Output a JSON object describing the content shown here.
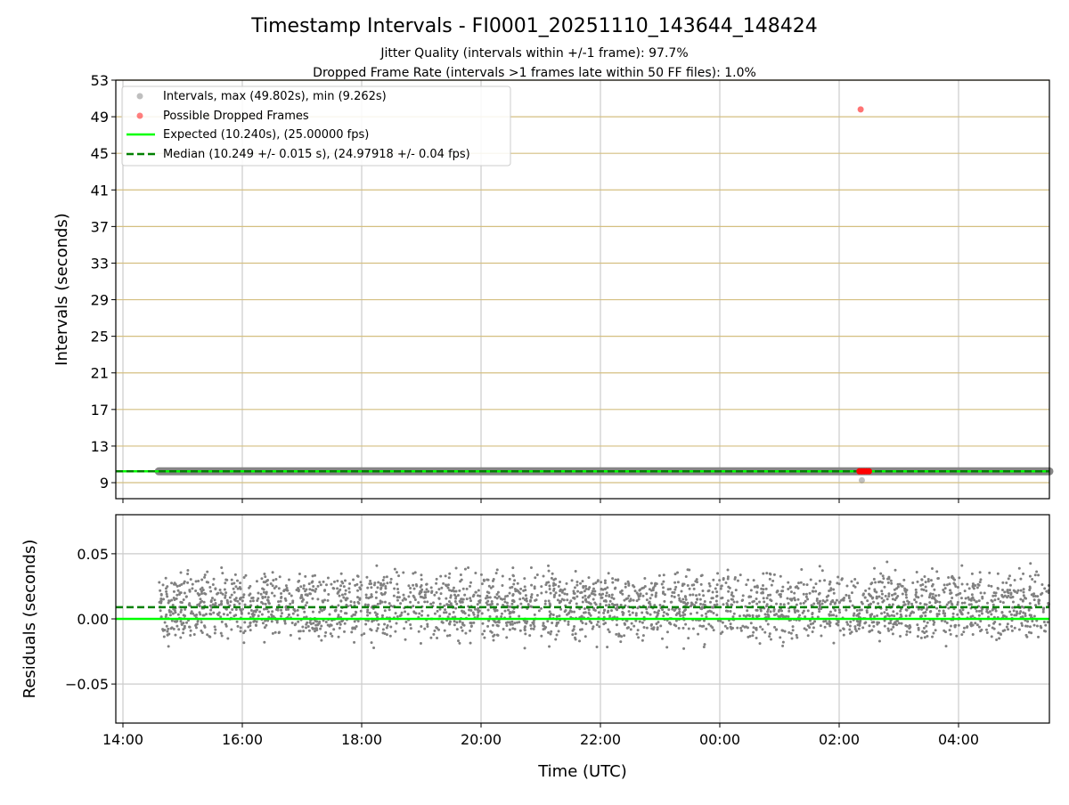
{
  "chart_data": [
    {
      "type": "scatter",
      "title": "Timestamp Intervals - FI0001_20251110_143644_148424",
      "subtitle_lines": [
        "Jitter Quality (intervals within +/-1 frame): 97.7%",
        "Dropped Frame Rate (intervals >1 frames late within 50 FF files): 1.0%"
      ],
      "xlabel": "",
      "ylabel": "Intervals (seconds)",
      "ylim": [
        7.25,
        53
      ],
      "yticks": [
        "9",
        "13",
        "17",
        "21",
        "25",
        "29",
        "33",
        "37",
        "41",
        "45",
        "49",
        "53"
      ],
      "xlim_hours_from_1400": [
        -0.12,
        15.52
      ],
      "grid": true,
      "legend_placement": "top-left",
      "legend": [
        "Intervals, max (49.802s), min (9.262s)",
        "Possible Dropped Frames",
        "Expected (10.240s), (25.00000 fps)",
        "Median (10.249 +/- 0.015 s), (24.97918 +/- 0.04 fps)"
      ],
      "intervals": {
        "start_hours": 0.6,
        "end_hours": 15.52,
        "typical": 10.24,
        "max": 49.802,
        "min": 9.262,
        "min_at_hours": 12.38
      },
      "dropped_frames": [
        {
          "t_hours": 12.36,
          "value": 49.802
        },
        {
          "t_hours": 12.34,
          "value": 10.24
        },
        {
          "t_hours": 12.38,
          "value": 10.24
        },
        {
          "t_hours": 12.42,
          "value": 10.24
        },
        {
          "t_hours": 12.46,
          "value": 10.24
        },
        {
          "t_hours": 12.5,
          "value": 10.24
        }
      ],
      "expected": 10.24,
      "median": 10.249,
      "colors": {
        "intervals": "#808080",
        "dropped": "#ff0000",
        "expected": "#00ff00",
        "median": "#008000",
        "hgrid": "#d4bf80",
        "vgrid": "#cccccc"
      }
    },
    {
      "type": "scatter",
      "xlabel": "Time (UTC)",
      "ylabel": "Residuals (seconds)",
      "ylim": [
        -0.08,
        0.08
      ],
      "yticks": [
        {
          "v": 0.05,
          "label": "0.05"
        },
        {
          "v": 0.0,
          "label": "0.00"
        },
        {
          "v": -0.05,
          "label": "−0.05"
        }
      ],
      "xticks": [
        "14:00",
        "16:00",
        "18:00",
        "20:00",
        "22:00",
        "00:00",
        "02:00",
        "04:00"
      ],
      "residuals": {
        "count": 2800,
        "start_hours": 0.6,
        "end_hours": 15.52,
        "mean": 0.009,
        "spread": 0.015,
        "max": 0.064,
        "min": -0.044
      },
      "expected_residual": 0.0,
      "median_residual": 0.009,
      "grid": true
    }
  ]
}
